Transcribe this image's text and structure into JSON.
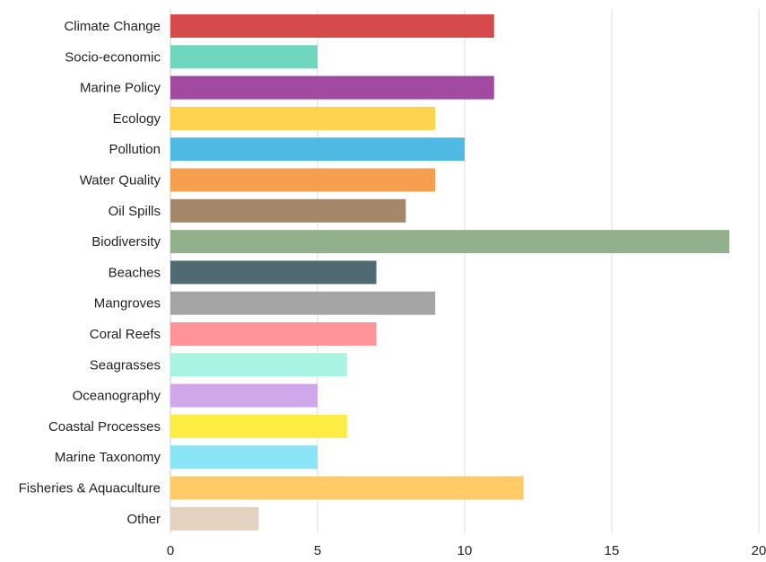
{
  "chart_data": {
    "type": "bar",
    "orientation": "horizontal",
    "title": "",
    "xlabel": "",
    "ylabel": "",
    "xlim": [
      0,
      20
    ],
    "xticks": [
      0,
      5,
      10,
      15,
      20
    ],
    "grid": "vertical",
    "legend": "none",
    "categories": [
      "Climate Change",
      "Socio-economic",
      "Marine Policy",
      "Ecology",
      "Pollution",
      "Water Quality",
      "Oil Spills",
      "Biodiversity",
      "Beaches",
      "Mangroves",
      "Coral Reefs",
      "Seagrasses",
      "Oceanography",
      "Coastal Processes",
      "Marine Taxonomy",
      "Fisheries & Aquaculture",
      "Other"
    ],
    "values": [
      11,
      5,
      11,
      9,
      10,
      9,
      8,
      19,
      7,
      9,
      7,
      6,
      5,
      6,
      5,
      12,
      3
    ],
    "colors": [
      "#d64a4b",
      "#6dd6bd",
      "#a24a9f",
      "#fdd34e",
      "#4ebae4",
      "#f6a04f",
      "#a5876c",
      "#93b08c",
      "#4f6a72",
      "#a5a5a5",
      "#ff9398",
      "#a9f3e3",
      "#cfa7ea",
      "#fdec42",
      "#8ae6f6",
      "#fecb67",
      "#e4d2c0"
    ]
  }
}
